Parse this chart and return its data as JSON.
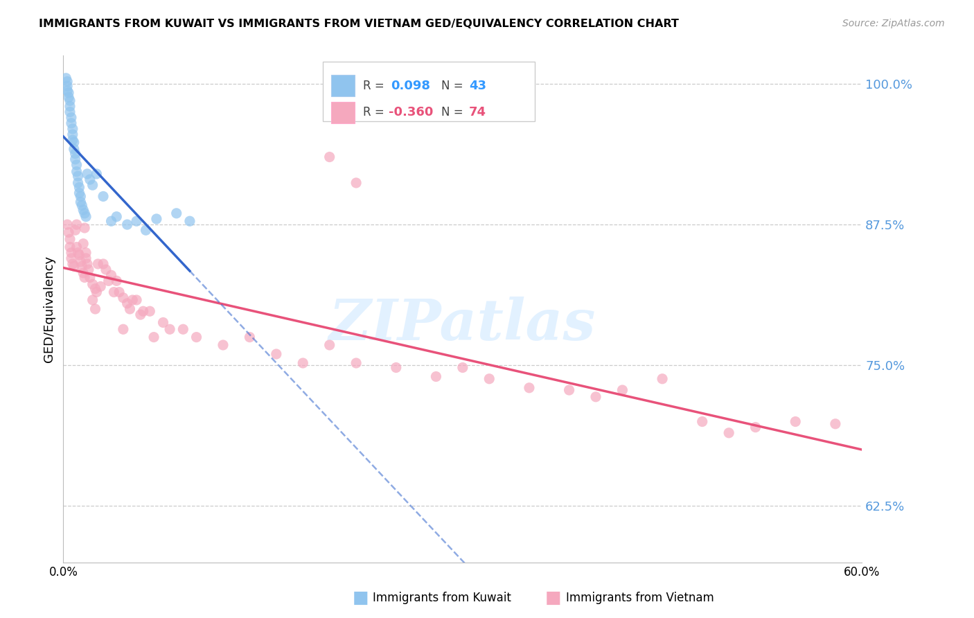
{
  "title": "IMMIGRANTS FROM KUWAIT VS IMMIGRANTS FROM VIETNAM GED/EQUIVALENCY CORRELATION CHART",
  "source": "Source: ZipAtlas.com",
  "ylabel": "GED/Equivalency",
  "x_min": 0.0,
  "x_max": 0.6,
  "y_min": 0.575,
  "y_max": 1.025,
  "y_ticks": [
    0.625,
    0.75,
    0.875,
    1.0
  ],
  "y_tick_labels": [
    "62.5%",
    "75.0%",
    "87.5%",
    "100.0%"
  ],
  "x_ticks": [
    0.0,
    0.1,
    0.2,
    0.3,
    0.4,
    0.5,
    0.6
  ],
  "x_tick_labels": [
    "0.0%",
    "",
    "",
    "",
    "",
    "",
    "60.0%"
  ],
  "kuwait_color": "#90C4EE",
  "vietnam_color": "#F5A8BE",
  "kuwait_line_color": "#3366CC",
  "vietnam_line_color": "#E8527A",
  "watermark_text": "ZIPatlas",
  "kuwait_scatter_x": [
    0.002,
    0.003,
    0.003,
    0.003,
    0.004,
    0.004,
    0.005,
    0.005,
    0.005,
    0.006,
    0.006,
    0.007,
    0.007,
    0.007,
    0.008,
    0.008,
    0.009,
    0.009,
    0.01,
    0.01,
    0.011,
    0.011,
    0.012,
    0.012,
    0.013,
    0.013,
    0.014,
    0.015,
    0.016,
    0.017,
    0.018,
    0.02,
    0.022,
    0.025,
    0.03,
    0.04,
    0.055,
    0.07,
    0.085,
    0.095,
    0.036,
    0.048,
    0.062
  ],
  "kuwait_scatter_y": [
    1.005,
    1.002,
    0.998,
    0.994,
    0.992,
    0.988,
    0.985,
    0.98,
    0.975,
    0.97,
    0.965,
    0.96,
    0.955,
    0.95,
    0.948,
    0.942,
    0.938,
    0.933,
    0.928,
    0.922,
    0.918,
    0.912,
    0.908,
    0.903,
    0.9,
    0.895,
    0.892,
    0.888,
    0.885,
    0.882,
    0.92,
    0.915,
    0.91,
    0.92,
    0.9,
    0.882,
    0.878,
    0.88,
    0.885,
    0.878,
    0.878,
    0.875,
    0.87
  ],
  "vietnam_scatter_x": [
    0.003,
    0.004,
    0.005,
    0.005,
    0.006,
    0.006,
    0.007,
    0.008,
    0.009,
    0.01,
    0.01,
    0.011,
    0.012,
    0.013,
    0.014,
    0.015,
    0.016,
    0.017,
    0.018,
    0.019,
    0.02,
    0.022,
    0.024,
    0.025,
    0.026,
    0.028,
    0.03,
    0.032,
    0.034,
    0.036,
    0.038,
    0.04,
    0.042,
    0.045,
    0.045,
    0.048,
    0.05,
    0.052,
    0.055,
    0.058,
    0.06,
    0.065,
    0.068,
    0.075,
    0.08,
    0.09,
    0.1,
    0.12,
    0.14,
    0.16,
    0.18,
    0.2,
    0.22,
    0.25,
    0.28,
    0.3,
    0.32,
    0.35,
    0.38,
    0.4,
    0.42,
    0.45,
    0.48,
    0.5,
    0.52,
    0.55,
    0.58,
    0.015,
    0.016,
    0.017,
    0.022,
    0.024,
    0.2,
    0.22
  ],
  "vietnam_scatter_y": [
    0.875,
    0.868,
    0.862,
    0.855,
    0.85,
    0.845,
    0.84,
    0.838,
    0.87,
    0.875,
    0.855,
    0.85,
    0.848,
    0.842,
    0.838,
    0.832,
    0.828,
    0.845,
    0.84,
    0.835,
    0.828,
    0.822,
    0.818,
    0.815,
    0.84,
    0.82,
    0.84,
    0.835,
    0.825,
    0.83,
    0.815,
    0.825,
    0.815,
    0.81,
    0.782,
    0.805,
    0.8,
    0.808,
    0.808,
    0.795,
    0.798,
    0.798,
    0.775,
    0.788,
    0.782,
    0.782,
    0.775,
    0.768,
    0.775,
    0.76,
    0.752,
    0.768,
    0.752,
    0.748,
    0.74,
    0.748,
    0.738,
    0.73,
    0.728,
    0.722,
    0.728,
    0.738,
    0.7,
    0.69,
    0.695,
    0.7,
    0.698,
    0.858,
    0.872,
    0.85,
    0.808,
    0.8,
    0.935,
    0.912
  ]
}
